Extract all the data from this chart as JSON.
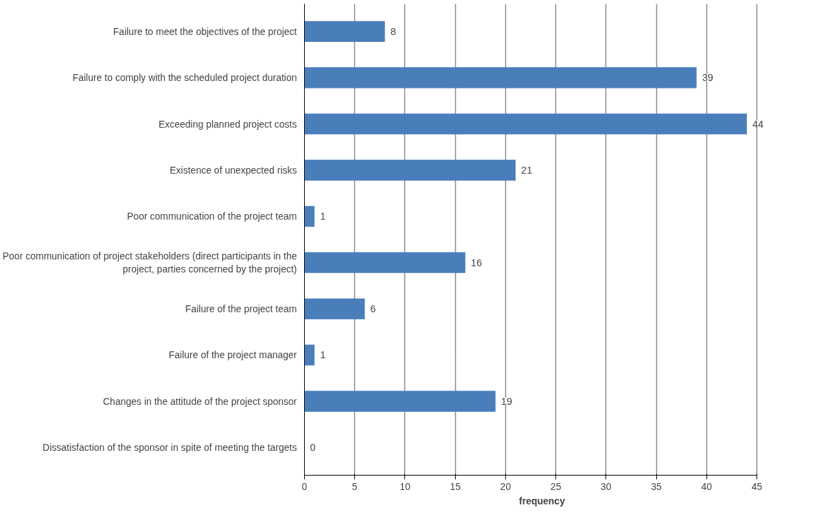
{
  "chart_data": {
    "type": "bar",
    "orientation": "horizontal",
    "xlabel": "frequency",
    "categories": [
      "Failure to meet the objectives of the project",
      "Failure to comply with the scheduled project duration",
      "Exceeding planned project costs",
      "Existence of unexpected risks",
      "Poor communication of the project team",
      "Poor communication of project stakeholders (direct participants in the project, parties concerned by the project)",
      "Failure of the project team",
      "Failure of the project manager",
      "Changes in the attitude of the project sponsor",
      "Dissatisfaction of the sponsor in spite of meeting the targets"
    ],
    "values": [
      8,
      39,
      44,
      21,
      1,
      16,
      6,
      1,
      19,
      0
    ],
    "color": "#4a7ebb",
    "xlim": [
      0,
      45
    ],
    "xticks": [
      0,
      5,
      10,
      15,
      20,
      25,
      30,
      35,
      40,
      45
    ],
    "grid": "x",
    "data_labels": true
  }
}
